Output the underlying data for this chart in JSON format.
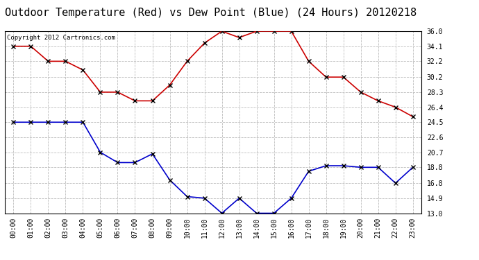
{
  "title": "Outdoor Temperature (Red) vs Dew Point (Blue) (24 Hours) 20120218",
  "copyright": "Copyright 2012 Cartronics.com",
  "x_labels": [
    "00:00",
    "01:00",
    "02:00",
    "03:00",
    "04:00",
    "05:00",
    "06:00",
    "07:00",
    "08:00",
    "09:00",
    "10:00",
    "11:00",
    "12:00",
    "13:00",
    "14:00",
    "15:00",
    "16:00",
    "17:00",
    "18:00",
    "19:00",
    "20:00",
    "21:00",
    "22:00",
    "23:00"
  ],
  "temp_values": [
    34.1,
    34.1,
    32.2,
    32.2,
    31.1,
    28.3,
    28.3,
    27.2,
    27.2,
    29.2,
    32.2,
    34.5,
    36.0,
    35.2,
    36.0,
    36.0,
    36.0,
    32.2,
    30.2,
    30.2,
    28.3,
    27.2,
    26.4,
    25.2
  ],
  "dew_values": [
    24.5,
    24.5,
    24.5,
    24.5,
    24.5,
    20.7,
    19.4,
    19.4,
    20.5,
    17.2,
    15.1,
    14.9,
    13.0,
    14.9,
    13.0,
    13.0,
    14.9,
    18.3,
    19.0,
    19.0,
    18.8,
    18.8,
    16.8,
    18.8
  ],
  "ylim": [
    13.0,
    36.0
  ],
  "yticks": [
    13.0,
    14.9,
    16.8,
    18.8,
    20.7,
    22.6,
    24.5,
    26.4,
    28.3,
    30.2,
    32.2,
    34.1,
    36.0
  ],
  "temp_color": "#cc0000",
  "dew_color": "#0000cc",
  "marker": "x",
  "marker_color": "#000000",
  "grid_color": "#bbbbbb",
  "bg_color": "#ffffff",
  "title_fontsize": 11,
  "copyright_fontsize": 6.5,
  "tick_fontsize": 7
}
